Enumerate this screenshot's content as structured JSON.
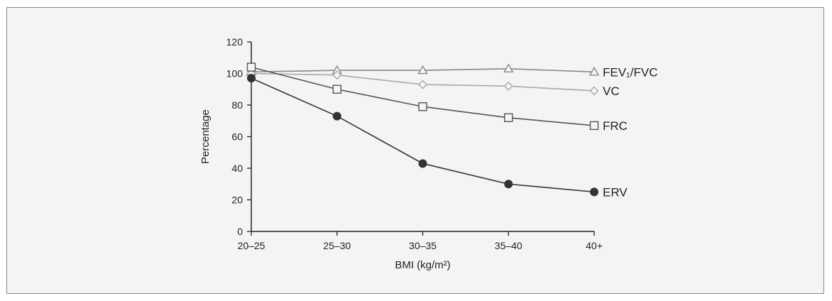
{
  "chart_data": {
    "type": "line",
    "categories": [
      "20–25",
      "25–30",
      "30–35",
      "35–40",
      "40+"
    ],
    "xlabel": "BMI (kg/m²)",
    "ylabel": "Percentage",
    "ylim": [
      0,
      120
    ],
    "yticks": [
      0,
      20,
      40,
      60,
      80,
      100,
      120
    ],
    "grid": false,
    "legend": "labels at line ends",
    "series": [
      {
        "name": "FEV₁/FVC",
        "marker": "triangle-open",
        "color": "#888888",
        "values": [
          101,
          102,
          102,
          103,
          101
        ]
      },
      {
        "name": "VC",
        "marker": "diamond-open",
        "color": "#a8a8a8",
        "values": [
          100,
          99,
          93,
          92,
          89
        ]
      },
      {
        "name": "FRC",
        "marker": "square-open",
        "color": "#555555",
        "values": [
          104,
          90,
          79,
          72,
          67
        ]
      },
      {
        "name": "ERV",
        "marker": "circle-filled",
        "color": "#333333",
        "values": [
          97,
          73,
          43,
          30,
          25
        ]
      }
    ]
  }
}
